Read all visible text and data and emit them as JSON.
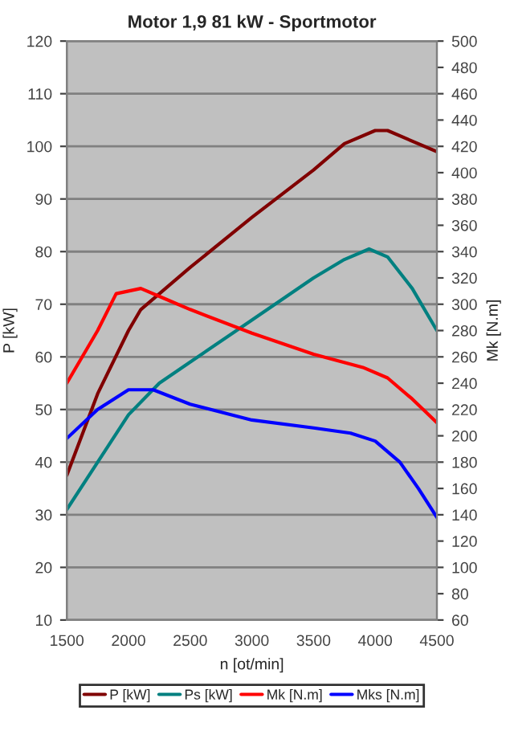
{
  "chart_data": {
    "type": "line",
    "title": "Motor 1,9 81 kW - Sportmotor",
    "xlabel": "n [ot/min]",
    "ylabel": "P [kW]",
    "y2label": "Mk [N.m]",
    "series": [
      {
        "name": "P [kW]",
        "color": "#800000",
        "x": [
          1500,
          1750,
          2000,
          2100,
          2500,
          3000,
          3500,
          3750,
          4000,
          4100,
          4500
        ],
        "values": [
          37.5,
          53,
          65,
          69,
          77,
          86.5,
          95.5,
          100.5,
          103,
          103,
          99
        ]
      },
      {
        "name": "Ps [kW]",
        "color": "#008080",
        "x": [
          1500,
          1750,
          2000,
          2250,
          2500,
          3000,
          3500,
          3750,
          3950,
          4100,
          4300,
          4500
        ],
        "values": [
          31,
          40,
          49,
          55,
          59,
          67,
          75,
          78.5,
          80.5,
          79,
          73,
          65
        ]
      },
      {
        "name": "Mk [N.m]",
        "color": "#ff0000",
        "axis": "y2",
        "x": [
          1500,
          1750,
          1900,
          2100,
          2300,
          2500,
          3000,
          3500,
          3900,
          4100,
          4300,
          4500
        ],
        "values": [
          240,
          280,
          308,
          312,
          304,
          296,
          278,
          262,
          252,
          244,
          228,
          210
        ]
      },
      {
        "name": "Mks [N.m]",
        "color": "#0000ff",
        "axis": "y2",
        "x": [
          1500,
          1750,
          2000,
          2200,
          2500,
          3000,
          3500,
          3800,
          4000,
          4200,
          4350,
          4500
        ],
        "values": [
          198,
          220,
          235,
          235,
          224,
          212,
          206,
          202,
          196,
          180,
          160,
          138
        ]
      }
    ],
    "xlim": [
      1500,
      4500
    ],
    "xticks": [
      1500,
      2000,
      2500,
      3000,
      3500,
      4000,
      4500
    ],
    "ylim": [
      10,
      120
    ],
    "yticks": [
      10,
      20,
      30,
      40,
      50,
      60,
      70,
      80,
      90,
      100,
      110,
      120
    ],
    "y2lim": [
      60,
      500
    ],
    "y2ticks": [
      60,
      80,
      100,
      120,
      140,
      160,
      180,
      200,
      220,
      240,
      260,
      280,
      300,
      320,
      340,
      360,
      380,
      400,
      420,
      440,
      460,
      480,
      500
    ],
    "grid": "y",
    "legend": "bottom",
    "line_style": "solid"
  }
}
